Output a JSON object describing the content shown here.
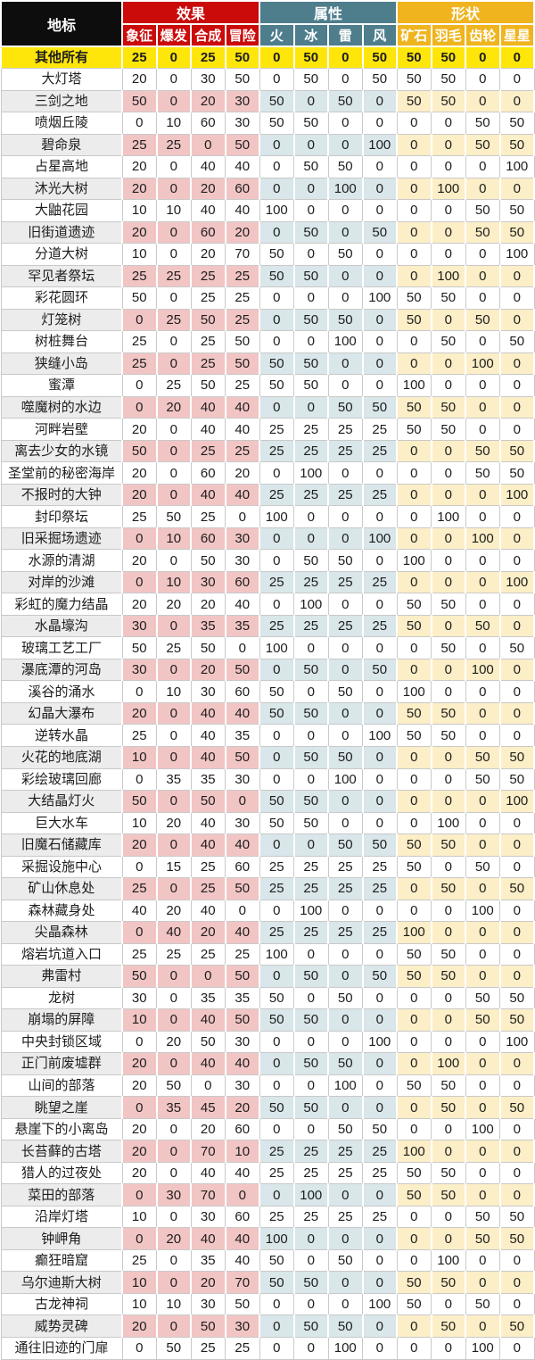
{
  "chart_data": {
    "type": "table",
    "corner_header": "地标",
    "column_groups": [
      {
        "label": "效果",
        "columns": [
          "象征",
          "爆发",
          "合成",
          "冒险"
        ]
      },
      {
        "label": "属性",
        "columns": [
          "火",
          "冰",
          "雷",
          "风"
        ]
      },
      {
        "label": "形状",
        "columns": [
          "矿石",
          "羽毛",
          "齿轮",
          "星星"
        ]
      }
    ],
    "rows": [
      {
        "name": "其他所有",
        "highlight": true,
        "values": [
          25,
          0,
          25,
          50,
          0,
          50,
          0,
          50,
          50,
          50,
          0,
          0
        ]
      },
      {
        "name": "大灯塔",
        "values": [
          20,
          0,
          30,
          50,
          0,
          50,
          0,
          50,
          50,
          50,
          0,
          0
        ]
      },
      {
        "name": "三剑之地",
        "values": [
          50,
          0,
          20,
          30,
          50,
          0,
          50,
          0,
          50,
          50,
          0,
          0
        ]
      },
      {
        "name": "喷烟丘陵",
        "values": [
          0,
          10,
          60,
          30,
          50,
          50,
          0,
          0,
          0,
          0,
          50,
          50
        ]
      },
      {
        "name": "碧命泉",
        "values": [
          25,
          25,
          0,
          50,
          0,
          0,
          0,
          100,
          0,
          0,
          50,
          50
        ]
      },
      {
        "name": "占星高地",
        "values": [
          20,
          0,
          40,
          40,
          0,
          50,
          50,
          0,
          0,
          0,
          0,
          100
        ]
      },
      {
        "name": "沐光大树",
        "values": [
          20,
          0,
          20,
          60,
          0,
          0,
          100,
          0,
          0,
          100,
          0,
          0
        ]
      },
      {
        "name": "大鼬花园",
        "values": [
          10,
          10,
          40,
          40,
          100,
          0,
          0,
          0,
          0,
          0,
          50,
          50
        ]
      },
      {
        "name": "旧街道遗迹",
        "values": [
          20,
          0,
          60,
          20,
          0,
          50,
          0,
          50,
          0,
          0,
          50,
          50
        ]
      },
      {
        "name": "分道大树",
        "values": [
          10,
          0,
          20,
          70,
          50,
          0,
          50,
          0,
          0,
          0,
          0,
          100
        ]
      },
      {
        "name": "罕见者祭坛",
        "values": [
          25,
          25,
          25,
          25,
          50,
          50,
          0,
          0,
          0,
          100,
          0,
          0
        ]
      },
      {
        "name": "彩花圆环",
        "values": [
          50,
          0,
          25,
          25,
          0,
          0,
          0,
          100,
          50,
          50,
          0,
          0
        ]
      },
      {
        "name": "灯笼树",
        "values": [
          0,
          25,
          50,
          25,
          0,
          50,
          50,
          0,
          50,
          0,
          50,
          0
        ]
      },
      {
        "name": "树桩舞台",
        "values": [
          25,
          0,
          25,
          50,
          0,
          0,
          100,
          0,
          0,
          50,
          0,
          50
        ]
      },
      {
        "name": "狭缝小岛",
        "values": [
          25,
          0,
          25,
          50,
          50,
          50,
          0,
          0,
          0,
          0,
          100,
          0
        ]
      },
      {
        "name": "蜜潭",
        "values": [
          0,
          25,
          50,
          25,
          50,
          50,
          0,
          0,
          100,
          0,
          0,
          0
        ]
      },
      {
        "name": "噬魔树的水边",
        "values": [
          0,
          20,
          40,
          40,
          0,
          0,
          50,
          50,
          50,
          50,
          0,
          0
        ]
      },
      {
        "name": "河畔岩壁",
        "values": [
          20,
          0,
          40,
          40,
          25,
          25,
          25,
          25,
          50,
          50,
          0,
          0
        ]
      },
      {
        "name": "离去少女的水镜",
        "values": [
          50,
          0,
          25,
          25,
          25,
          25,
          25,
          25,
          0,
          0,
          50,
          50
        ]
      },
      {
        "name": "圣堂前的秘密海岸",
        "values": [
          20,
          0,
          60,
          20,
          0,
          100,
          0,
          0,
          0,
          0,
          50,
          50
        ]
      },
      {
        "name": "不报时的大钟",
        "values": [
          20,
          0,
          40,
          40,
          25,
          25,
          25,
          25,
          0,
          0,
          0,
          100
        ]
      },
      {
        "name": "封印祭坛",
        "values": [
          25,
          50,
          25,
          0,
          100,
          0,
          0,
          0,
          0,
          100,
          0,
          0
        ]
      },
      {
        "name": "旧采掘场遗迹",
        "values": [
          0,
          10,
          60,
          30,
          0,
          0,
          0,
          100,
          0,
          0,
          100,
          0
        ]
      },
      {
        "name": "水源的清湖",
        "values": [
          20,
          0,
          50,
          30,
          0,
          50,
          50,
          0,
          100,
          0,
          0,
          0
        ]
      },
      {
        "name": "对岸的沙滩",
        "values": [
          0,
          10,
          30,
          60,
          25,
          25,
          25,
          25,
          0,
          0,
          0,
          100
        ]
      },
      {
        "name": "彩虹的魔力结晶",
        "values": [
          20,
          20,
          20,
          40,
          0,
          100,
          0,
          0,
          50,
          50,
          0,
          0
        ]
      },
      {
        "name": "水晶壕沟",
        "values": [
          30,
          0,
          35,
          35,
          25,
          25,
          25,
          25,
          50,
          0,
          50,
          0
        ]
      },
      {
        "name": "玻璃工艺工厂",
        "values": [
          50,
          25,
          50,
          0,
          100,
          0,
          0,
          0,
          0,
          50,
          0,
          50
        ]
      },
      {
        "name": "瀑底潭的河岛",
        "values": [
          30,
          0,
          20,
          50,
          0,
          50,
          0,
          50,
          0,
          0,
          100,
          0
        ]
      },
      {
        "name": "溪谷的涌水",
        "values": [
          0,
          10,
          30,
          60,
          50,
          0,
          50,
          0,
          100,
          0,
          0,
          0
        ]
      },
      {
        "name": "幻晶大瀑布",
        "values": [
          20,
          0,
          40,
          40,
          50,
          50,
          0,
          0,
          50,
          50,
          0,
          0
        ]
      },
      {
        "name": "逆转水晶",
        "values": [
          25,
          0,
          40,
          35,
          0,
          0,
          0,
          100,
          50,
          50,
          0,
          0
        ]
      },
      {
        "name": "火花的地底湖",
        "values": [
          10,
          0,
          40,
          50,
          0,
          50,
          50,
          0,
          0,
          0,
          50,
          50
        ]
      },
      {
        "name": "彩绘玻璃回廊",
        "values": [
          0,
          35,
          35,
          30,
          0,
          0,
          100,
          0,
          0,
          0,
          50,
          50
        ]
      },
      {
        "name": "大结晶灯火",
        "values": [
          50,
          0,
          50,
          0,
          50,
          50,
          0,
          0,
          0,
          0,
          0,
          100
        ]
      },
      {
        "name": "巨大水车",
        "values": [
          10,
          20,
          40,
          30,
          50,
          50,
          0,
          0,
          0,
          100,
          0,
          0
        ]
      },
      {
        "name": "旧魔石储藏库",
        "values": [
          20,
          0,
          40,
          40,
          0,
          0,
          50,
          50,
          50,
          50,
          0,
          0
        ]
      },
      {
        "name": "采掘设施中心",
        "values": [
          0,
          15,
          25,
          60,
          25,
          25,
          25,
          25,
          50,
          0,
          50,
          0
        ]
      },
      {
        "name": "矿山休息处",
        "values": [
          25,
          0,
          25,
          50,
          25,
          25,
          25,
          25,
          0,
          50,
          0,
          50
        ]
      },
      {
        "name": "森林藏身处",
        "values": [
          40,
          20,
          40,
          0,
          0,
          100,
          0,
          0,
          0,
          0,
          100,
          0
        ]
      },
      {
        "name": "尖晶森林",
        "values": [
          0,
          40,
          20,
          40,
          25,
          25,
          25,
          25,
          100,
          0,
          0,
          0
        ]
      },
      {
        "name": "熔岩坑道入口",
        "values": [
          25,
          25,
          25,
          25,
          100,
          0,
          0,
          0,
          50,
          50,
          0,
          0
        ]
      },
      {
        "name": "弗雷村",
        "values": [
          50,
          0,
          0,
          50,
          0,
          50,
          0,
          50,
          50,
          50,
          0,
          0
        ]
      },
      {
        "name": "龙树",
        "values": [
          30,
          0,
          35,
          35,
          50,
          0,
          50,
          0,
          0,
          0,
          50,
          50
        ]
      },
      {
        "name": "崩塌的屏障",
        "values": [
          10,
          0,
          40,
          50,
          50,
          50,
          0,
          0,
          0,
          0,
          50,
          50
        ]
      },
      {
        "name": "中央封锁区域",
        "values": [
          0,
          20,
          50,
          30,
          0,
          0,
          0,
          100,
          0,
          0,
          0,
          100
        ]
      },
      {
        "name": "正门前废墟群",
        "values": [
          20,
          0,
          40,
          40,
          0,
          50,
          50,
          0,
          0,
          100,
          0,
          0
        ]
      },
      {
        "name": "山间的部落",
        "values": [
          20,
          50,
          0,
          30,
          0,
          0,
          100,
          0,
          50,
          50,
          0,
          0
        ]
      },
      {
        "name": "眺望之崖",
        "values": [
          0,
          35,
          45,
          20,
          50,
          50,
          0,
          0,
          0,
          50,
          0,
          50
        ]
      },
      {
        "name": "悬崖下的小离岛",
        "values": [
          20,
          0,
          20,
          60,
          0,
          0,
          50,
          50,
          0,
          0,
          100,
          0
        ]
      },
      {
        "name": "长苔藓的古塔",
        "values": [
          20,
          0,
          70,
          10,
          25,
          25,
          25,
          25,
          100,
          0,
          0,
          0
        ]
      },
      {
        "name": "猎人的过夜处",
        "values": [
          20,
          0,
          40,
          40,
          25,
          25,
          25,
          25,
          50,
          50,
          0,
          0
        ]
      },
      {
        "name": "菜田的部落",
        "values": [
          0,
          30,
          70,
          0,
          0,
          100,
          0,
          0,
          50,
          50,
          0,
          0
        ]
      },
      {
        "name": "沿岸灯塔",
        "values": [
          10,
          0,
          30,
          60,
          25,
          25,
          25,
          25,
          0,
          0,
          50,
          50
        ]
      },
      {
        "name": "钟岬角",
        "values": [
          0,
          20,
          40,
          40,
          100,
          0,
          0,
          0,
          0,
          0,
          50,
          50
        ]
      },
      {
        "name": "癫狂暗窟",
        "values": [
          25,
          0,
          35,
          40,
          50,
          0,
          50,
          0,
          0,
          100,
          0,
          0
        ]
      },
      {
        "name": "乌尔迪斯大树",
        "values": [
          10,
          0,
          20,
          70,
          50,
          50,
          0,
          0,
          50,
          50,
          0,
          0
        ]
      },
      {
        "name": "古龙神祠",
        "values": [
          10,
          10,
          30,
          50,
          0,
          0,
          0,
          100,
          50,
          0,
          50,
          0
        ]
      },
      {
        "name": "威势灵碑",
        "values": [
          20,
          0,
          50,
          30,
          0,
          50,
          50,
          0,
          0,
          50,
          0,
          50
        ]
      },
      {
        "name": "通往旧迹的门扉",
        "values": [
          0,
          50,
          25,
          25,
          0,
          0,
          100,
          0,
          0,
          0,
          100,
          0
        ]
      }
    ]
  },
  "colors": {
    "header_landmark_bg": "#0d0d0d",
    "group_effect": "#cb0a0a",
    "group_attribute": "#4e7d8c",
    "group_shape": "#efb41e",
    "highlight_row_bg": "#ffe60a",
    "cell_effect_tint": "#f2c5c5",
    "cell_attribute_tint": "#d9e6ea",
    "cell_shape_tint": "#fceec7",
    "name_cell_tint": "#ececec",
    "gridline": "#c9c9c9"
  }
}
